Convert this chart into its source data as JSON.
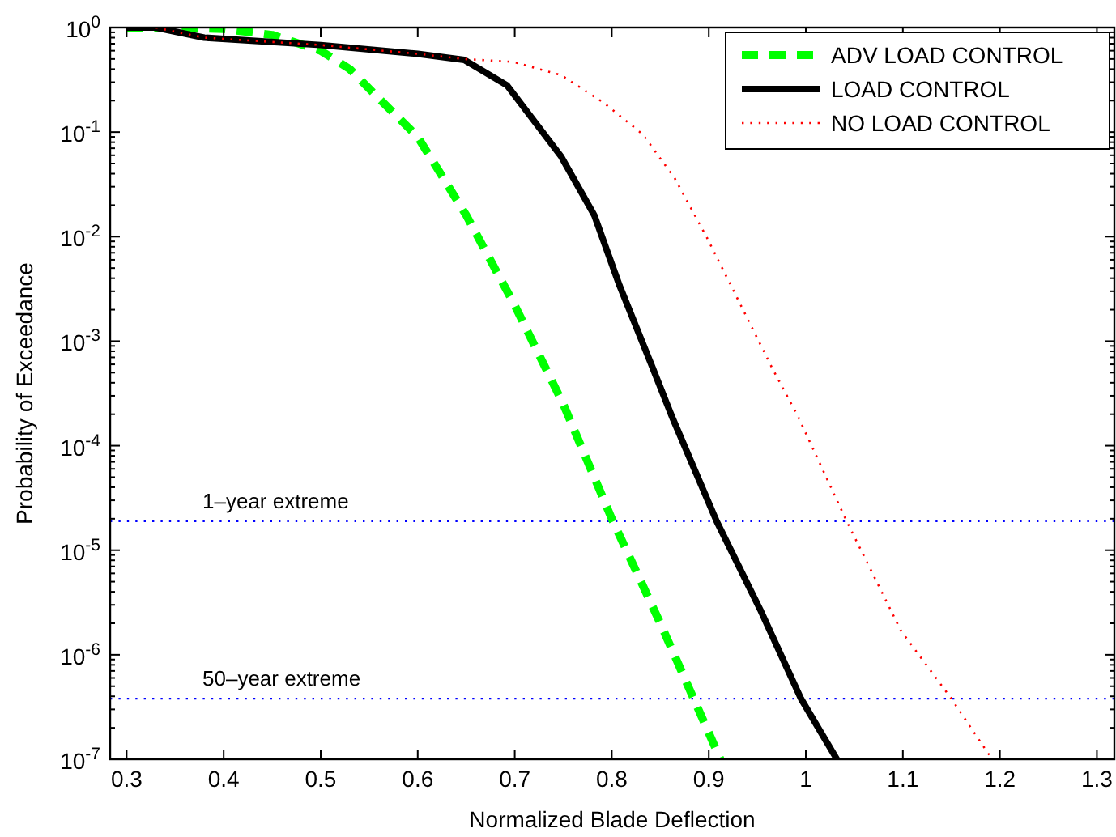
{
  "chart_data": {
    "type": "line",
    "xlabel": "Normalized Blade Deflection",
    "ylabel": "Probability of Exceedance",
    "log": "y",
    "xlim": [
      0.283,
      1.318
    ],
    "ylim": [
      1e-07,
      1
    ],
    "xticks": [
      0.3,
      0.4,
      0.5,
      0.6,
      0.7,
      0.8,
      0.9,
      1,
      1.1,
      1.2,
      1.3
    ],
    "yticks": [
      {
        "value": 1e-07,
        "label": "10$^{-7}$"
      },
      {
        "value": 1e-06,
        "label": "10$^{-6}$"
      },
      {
        "value": 1e-05,
        "label": "10$^{-5}$"
      },
      {
        "value": 0.0001,
        "label": "10$^{-4}$"
      },
      {
        "value": 0.001,
        "label": "10$^{-3}$"
      },
      {
        "value": 0.01,
        "label": "10$^{-2}$"
      },
      {
        "value": 0.1,
        "label": "10$^{-1}$"
      },
      {
        "value": 1,
        "label": "10$^{0}$"
      }
    ],
    "grid": false,
    "legend": "top right",
    "marker": "none",
    "series": [
      {
        "name": "ADV LOAD CONTROL",
        "color": "#00ff00",
        "line_style": "dashed",
        "x": [
          0.3,
          0.35,
          0.4,
          0.45,
          0.5,
          0.53,
          0.56,
          0.6,
          0.65,
          0.7,
          0.75,
          0.8,
          0.85,
          0.88,
          0.912
        ],
        "values": [
          1,
          1,
          0.97,
          0.85,
          0.6,
          0.4,
          0.21,
          0.09,
          0.016,
          0.0022,
          0.00025,
          2e-05,
          2e-06,
          4.7e-07,
          1e-07
        ]
      },
      {
        "name": "LOAD CONTROL",
        "color": "#000000",
        "line_style": "solid",
        "x": [
          0.3,
          0.33,
          0.38,
          0.5,
          0.6,
          0.648,
          0.692,
          0.748,
          0.782,
          0.808,
          0.842,
          0.862,
          0.908,
          0.953,
          0.995,
          1.032
        ],
        "values": [
          1,
          1,
          0.8,
          0.68,
          0.56,
          0.49,
          0.28,
          0.058,
          0.016,
          0.0034,
          0.00056,
          0.00019,
          1.9e-05,
          2.7e-06,
          3.8e-07,
          1e-07
        ]
      },
      {
        "name": "NO LOAD CONTROL",
        "color": "#ff0000",
        "line_style": "dotted",
        "x": [
          0.33,
          0.38,
          0.5,
          0.6,
          0.648,
          0.698,
          0.748,
          0.792,
          0.832,
          0.865,
          0.898,
          0.932,
          0.965,
          0.992,
          1.042,
          1.098,
          1.15,
          1.192
        ],
        "values": [
          1,
          0.8,
          0.68,
          0.56,
          0.5,
          0.47,
          0.35,
          0.19,
          0.095,
          0.036,
          0.0098,
          0.0023,
          0.00056,
          0.00019,
          1.9e-05,
          1.7e-06,
          3.8e-07,
          1e-07
        ]
      }
    ],
    "ref_lines": [
      {
        "axis": "y",
        "value": 1.9e-05,
        "label": "1–year extreme",
        "color": "#0000ff",
        "line_style": "dotted"
      },
      {
        "axis": "y",
        "value": 3.8e-07,
        "label": "50–year extreme",
        "color": "#0000ff",
        "line_style": "dotted"
      }
    ]
  }
}
